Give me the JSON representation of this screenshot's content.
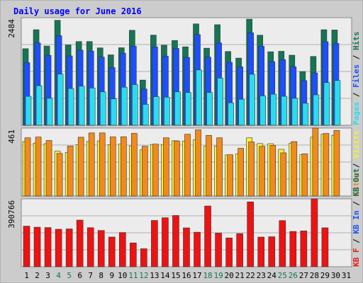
{
  "chart_data": {
    "type": "bar",
    "title": "Daily usage for June 2016",
    "categories": [
      "1",
      "2",
      "3",
      "4",
      "5",
      "6",
      "7",
      "8",
      "9",
      "10",
      "11",
      "12",
      "13",
      "14",
      "15",
      "16",
      "17",
      "18",
      "19",
      "20",
      "21",
      "22",
      "23",
      "24",
      "25",
      "26",
      "27",
      "28",
      "29",
      "30",
      "31"
    ],
    "weekend_days": [
      "4",
      "5",
      "11",
      "12",
      "18",
      "19",
      "25",
      "26"
    ],
    "panels": [
      {
        "id": "hits",
        "y_max_label": "2484",
        "ylim": [
          0,
          2484
        ],
        "side_labels": [
          "Pages",
          "Files",
          "Hits"
        ],
        "series": [
          {
            "name": "Hits",
            "color": "#157554",
            "values": [
              1768,
              2206,
              1829,
              2424,
              1855,
              1933,
              1933,
              1787,
              1626,
              1790,
              2193,
              1043,
              2082,
              1849,
              1958,
              1811,
              2341,
              1779,
              2322,
              1703,
              1551,
              2450,
              2080,
              1697,
              1708,
              1618,
              1240,
              1589,
              2206,
              2200,
              0
            ]
          },
          {
            "name": "Files",
            "color": "#1c4fff",
            "values": [
              1445,
              1902,
              1615,
              2067,
              1601,
              1733,
              1714,
              1573,
              1332,
              1665,
              1826,
              836,
              1810,
              1594,
              1774,
              1567,
              2094,
              1572,
              1901,
              1454,
              1350,
              2135,
              1824,
              1470,
              1516,
              1350,
              1031,
              1208,
              1930,
              1889,
              0
            ]
          },
          {
            "name": "Pages",
            "color": "#2adcf2",
            "values": [
              669,
              913,
              623,
              1181,
              849,
              903,
              861,
              771,
              608,
              878,
              939,
              482,
              659,
              647,
              772,
              757,
              1277,
              756,
              1090,
              519,
              599,
              1177,
              679,
              717,
              669,
              622,
              507,
              703,
              986,
              1034,
              0
            ]
          }
        ]
      },
      {
        "id": "visits",
        "y_max_label": "461",
        "ylim": [
          0,
          461
        ],
        "side_labels": [
          "Sites",
          "Visits"
        ],
        "series": [
          {
            "name": "Visits",
            "color": "#f7f037",
            "values": [
              369,
              359,
              355,
              304,
              295,
              348,
              370,
              374,
              349,
              352,
              340,
              313,
              350,
              350,
              375,
              373,
              382,
              338,
              338,
              279,
              286,
              395,
              356,
              355,
              317,
              359,
              280,
              399,
              420,
              412,
              0
            ]
          },
          {
            "name": "Sites",
            "color": "#f28a1a",
            "values": [
              395,
              400,
              377,
              289,
              339,
              399,
              428,
              428,
              401,
              402,
              425,
              338,
              352,
              395,
              374,
              419,
              449,
              411,
              395,
              280,
              324,
              367,
              337,
              344,
              293,
              369,
              286,
              461,
              424,
              445,
              0
            ]
          }
        ]
      },
      {
        "id": "kbytes",
        "y_max_label": "390766",
        "ylim": [
          0,
          390766
        ],
        "side_labels": [
          "KB F",
          "KB In",
          "KB Out"
        ],
        "series": [
          {
            "name": "KBytes",
            "color": "#ee1212",
            "values": [
              233560,
              227604,
              225611,
              215740,
              217613,
              268432,
              224645,
              208745,
              170919,
              196930,
              137040,
              103722,
              266428,
              281893,
              294950,
              223704,
              198839,
              349474,
              193694,
              165643,
              190675,
              373000,
              170787,
              172627,
              265651,
              203082,
              206000,
              390766,
              224040,
              0,
              0
            ]
          }
        ]
      }
    ],
    "right_axis_labels": [
      "KB Out",
      "KB In",
      "KB F"
    ]
  }
}
